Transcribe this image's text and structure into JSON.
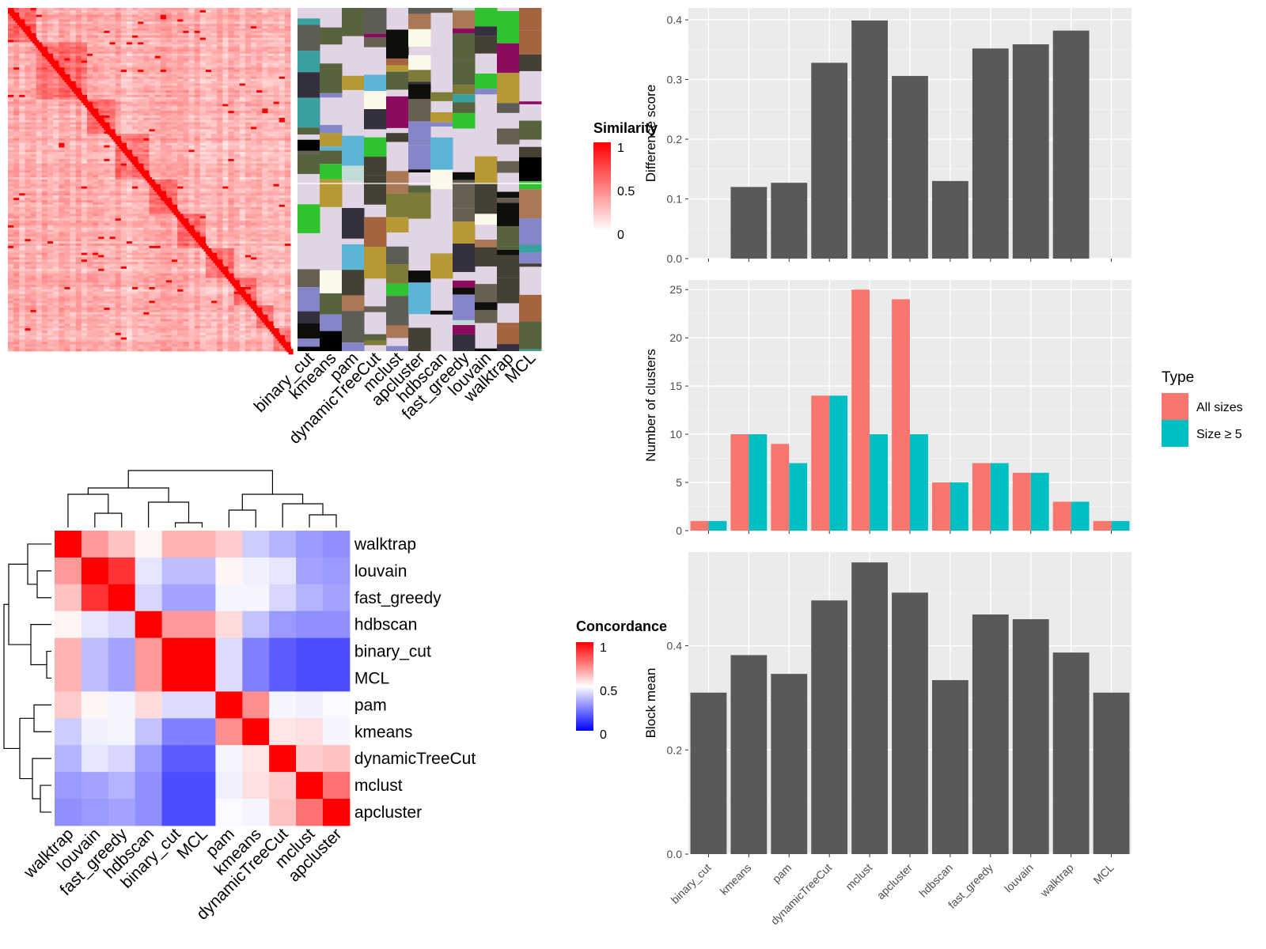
{
  "methods": [
    "binary_cut",
    "kmeans",
    "pam",
    "dynamicTreeCut",
    "mclust",
    "apcluster",
    "hdbscan",
    "fast_greedy",
    "louvain",
    "walktrap",
    "MCL"
  ],
  "similarity_legend": {
    "title": "Similarity",
    "ticks": [
      "1",
      "0.5",
      "0"
    ]
  },
  "concordance_legend": {
    "title": "Concordance",
    "ticks": [
      "1",
      "0.5",
      "0"
    ]
  },
  "type_legend": {
    "title": "Type",
    "items": [
      {
        "label": "All sizes",
        "color": "#F8766D"
      },
      {
        "label": "Size ≥ 5",
        "color": "#00BFC4"
      }
    ]
  },
  "chart_data": [
    {
      "type": "bar",
      "name": "difference-score",
      "categories": [
        "binary_cut",
        "kmeans",
        "pam",
        "dynamicTreeCut",
        "mclust",
        "apcluster",
        "hdbscan",
        "fast_greedy",
        "louvain",
        "walktrap",
        "MCL"
      ],
      "values": [
        0,
        0.12,
        0.127,
        0.328,
        0.399,
        0.306,
        0.13,
        0.352,
        0.359,
        0.382,
        0
      ],
      "xlabel": "",
      "ylabel": "Difference score",
      "ylim": [
        0,
        0.42
      ],
      "yticks": [
        "0.0",
        "0.1",
        "0.2",
        "0.3",
        "0.4"
      ],
      "grid": true
    },
    {
      "type": "bar",
      "name": "number-of-clusters",
      "categories": [
        "binary_cut",
        "kmeans",
        "pam",
        "dynamicTreeCut",
        "mclust",
        "apcluster",
        "hdbscan",
        "fast_greedy",
        "louvain",
        "walktrap",
        "MCL"
      ],
      "series": [
        {
          "name": "All sizes",
          "color": "#F8766D",
          "values": [
            1,
            10,
            9,
            14,
            25,
            24,
            5,
            7,
            6,
            3,
            1
          ]
        },
        {
          "name": "Size ≥ 5",
          "color": "#00BFC4",
          "values": [
            1,
            10,
            7,
            14,
            10,
            10,
            5,
            7,
            6,
            3,
            1
          ]
        }
      ],
      "xlabel": "",
      "ylabel": "Number of clusters",
      "ylim": [
        0,
        26
      ],
      "yticks": [
        "0",
        "5",
        "10",
        "15",
        "20",
        "25"
      ],
      "grid": true,
      "legend": "right"
    },
    {
      "type": "bar",
      "name": "block-mean",
      "categories": [
        "binary_cut",
        "kmeans",
        "pam",
        "dynamicTreeCut",
        "mclust",
        "apcluster",
        "hdbscan",
        "fast_greedy",
        "louvain",
        "walktrap",
        "MCL"
      ],
      "values": [
        0.31,
        0.382,
        0.346,
        0.487,
        0.56,
        0.502,
        0.334,
        0.46,
        0.451,
        0.387,
        0.31
      ],
      "xlabel": "",
      "ylabel": "Block mean",
      "ylim": [
        0,
        0.58
      ],
      "yticks": [
        "0.0",
        "0.2",
        "0.4"
      ],
      "grid": true
    },
    {
      "type": "heatmap",
      "name": "concordance-heatmap",
      "rows": [
        "walktrap",
        "louvain",
        "fast_greedy",
        "hdbscan",
        "binary_cut",
        "MCL",
        "pam",
        "kmeans",
        "dynamicTreeCut",
        "mclust",
        "apcluster"
      ],
      "cols": [
        "walktrap",
        "louvain",
        "fast_greedy",
        "hdbscan",
        "binary_cut",
        "MCL",
        "pam",
        "kmeans",
        "dynamicTreeCut",
        "mclust",
        "apcluster"
      ],
      "values": [
        [
          1.0,
          0.7,
          0.62,
          0.52,
          0.65,
          0.65,
          0.6,
          0.4,
          0.35,
          0.3,
          0.28
        ],
        [
          0.7,
          1.0,
          0.9,
          0.45,
          0.37,
          0.37,
          0.52,
          0.47,
          0.45,
          0.32,
          0.3
        ],
        [
          0.62,
          0.9,
          1.0,
          0.42,
          0.32,
          0.32,
          0.48,
          0.48,
          0.42,
          0.35,
          0.32
        ],
        [
          0.52,
          0.45,
          0.42,
          1.0,
          0.7,
          0.7,
          0.57,
          0.38,
          0.3,
          0.28,
          0.28
        ],
        [
          0.65,
          0.37,
          0.32,
          0.7,
          1.0,
          1.0,
          0.43,
          0.25,
          0.18,
          0.15,
          0.15
        ],
        [
          0.65,
          0.37,
          0.32,
          0.7,
          1.0,
          1.0,
          0.43,
          0.25,
          0.18,
          0.15,
          0.15
        ],
        [
          0.6,
          0.52,
          0.48,
          0.57,
          0.43,
          0.43,
          1.0,
          0.72,
          0.48,
          0.47,
          0.49
        ],
        [
          0.4,
          0.47,
          0.48,
          0.38,
          0.25,
          0.25,
          0.72,
          1.0,
          0.55,
          0.56,
          0.48
        ],
        [
          0.35,
          0.45,
          0.42,
          0.3,
          0.18,
          0.18,
          0.48,
          0.55,
          1.0,
          0.6,
          0.62
        ],
        [
          0.3,
          0.32,
          0.35,
          0.28,
          0.15,
          0.15,
          0.47,
          0.56,
          0.6,
          1.0,
          0.78
        ],
        [
          0.28,
          0.3,
          0.32,
          0.28,
          0.15,
          0.15,
          0.49,
          0.48,
          0.62,
          0.78,
          1.0
        ]
      ],
      "colorscale": [
        "#0000FF",
        "#FFFFFF",
        "#FF0000"
      ],
      "range": [
        0,
        1
      ]
    },
    {
      "type": "heatmap",
      "name": "similarity-heatmap",
      "rows_count": 150,
      "range": [
        0,
        1
      ],
      "colorscale": [
        "#FFFFFF",
        "#FF0000"
      ],
      "diagonal": 1
    }
  ]
}
